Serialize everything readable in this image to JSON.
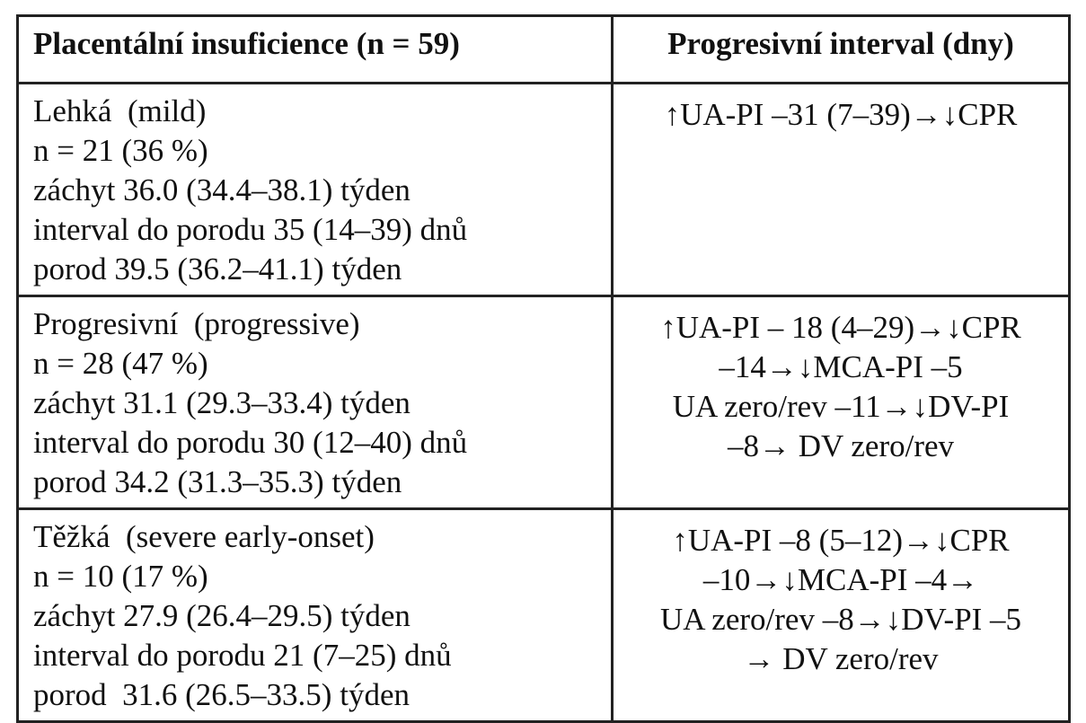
{
  "table": {
    "header": [
      "Placentální insuficience (n = 59)",
      "Progresivní interval (dny)"
    ],
    "rows": [
      [
        [
          "Lehká  (mild)",
          "n = 21 (36 %)",
          "záchyt 36.0 (34.4–38.1) týden",
          "interval do porodu 35 (14–39) dnů",
          "porod 39.5 (36.2–41.1) týden"
        ],
        [
          "↑UA-PI –31 (7–39)→↓CPR"
        ]
      ],
      [
        [
          "Progresivní  (progressive)",
          "n = 28 (47 %)",
          "záchyt 31.1 (29.3–33.4) týden",
          "interval do porodu 30 (12–40) dnů",
          "porod 34.2 (31.3–35.3) týden"
        ],
        [
          "↑UA-PI – 18 (4–29)→↓CPR",
          "–14→↓MCA-PI –5",
          "UA zero/rev –11→↓DV-PI",
          "–8→ DV zero/rev"
        ]
      ],
      [
        [
          "Těžká  (severe early-onset)",
          "n = 10 (17 %)",
          "záchyt 27.9 (26.4–29.5) týden",
          "interval do porodu 21 (7–25) dnů",
          "porod  31.6 (26.5–33.5) týden"
        ],
        [
          "↑UA-PI –8 (5–12)→↓CPR",
          "–10→↓MCA-PI –4→",
          "UA zero/rev –8→↓DV-PI –5",
          "→ DV zero/rev"
        ]
      ]
    ]
  }
}
